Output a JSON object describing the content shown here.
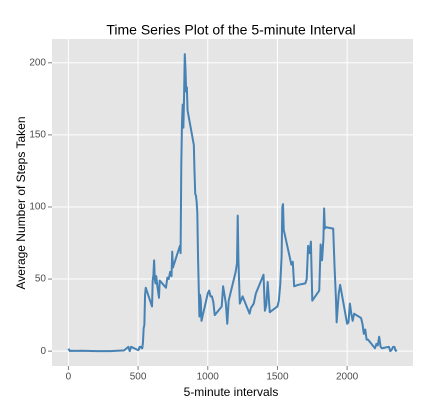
{
  "chart_data": {
    "type": "line",
    "title": "Time Series Plot of the 5-minute Interval",
    "x_label": "5-minute intervals",
    "y_label": "Average Number of Steps Taken",
    "x": [
      0,
      10,
      20,
      50,
      100,
      200,
      300,
      400,
      430,
      440,
      450,
      500,
      505,
      510,
      520,
      525,
      530,
      535,
      540,
      545,
      550,
      555,
      600,
      605,
      610,
      615,
      620,
      625,
      630,
      640,
      650,
      655,
      700,
      710,
      720,
      730,
      740,
      745,
      750,
      800,
      805,
      810,
      815,
      820,
      825,
      830,
      835,
      840,
      845,
      850,
      855,
      900,
      905,
      910,
      915,
      920,
      925,
      930,
      935,
      940,
      945,
      950,
      955,
      1000,
      1010,
      1020,
      1030,
      1040,
      1050,
      1100,
      1110,
      1130,
      1140,
      1150,
      1200,
      1210,
      1215,
      1220,
      1230,
      1250,
      1300,
      1310,
      1330,
      1345,
      1400,
      1410,
      1420,
      1430,
      1445,
      1500,
      1510,
      1520,
      1530,
      1535,
      1540,
      1545,
      1550,
      1600,
      1610,
      1620,
      1650,
      1700,
      1710,
      1720,
      1730,
      1740,
      1745,
      1750,
      1800,
      1810,
      1820,
      1830,
      1835,
      1840,
      1845,
      1900,
      1910,
      1920,
      1925,
      1930,
      1940,
      1950,
      2000,
      2010,
      2020,
      2030,
      2040,
      2050,
      2100,
      2110,
      2120,
      2130,
      2140,
      2150,
      2200,
      2210,
      2220,
      2230,
      2240,
      2250,
      2300,
      2310,
      2320,
      2330,
      2340,
      2345,
      2350,
      2355
    ],
    "series": [
      {
        "name": "steps",
        "color": "#4682b4",
        "values": [
          1.7,
          0.1,
          0.3,
          0.2,
          0.3,
          0,
          0,
          0.5,
          3,
          0,
          3,
          0.7,
          1,
          3,
          3,
          2,
          2,
          6,
          16,
          18,
          39,
          44,
          31,
          49,
          53,
          63,
          50,
          47,
          52,
          44,
          37,
          49,
          44,
          51,
          50,
          55,
          52,
          69,
          58,
          73,
          68,
          129,
          158,
          171,
          155,
          177,
          206,
          196,
          180,
          183,
          167,
          143,
          124,
          109,
          108,
          104,
          96,
          66,
          45,
          24,
          39,
          35,
          21,
          40,
          42,
          38,
          38,
          34,
          25,
          31,
          45,
          33,
          19,
          35,
          55,
          61,
          94,
          63,
          33,
          38,
          26,
          30,
          33,
          40,
          53,
          28,
          32,
          48,
          27,
          31,
          35,
          46,
          66,
          100,
          102,
          84,
          82,
          60,
          62,
          45,
          46,
          47,
          50,
          73,
          68,
          76,
          56,
          35,
          42,
          74,
          63,
          78,
          99,
          85,
          86,
          85,
          58,
          36,
          20,
          27,
          40,
          46,
          19,
          20,
          33,
          26,
          21,
          26,
          23,
          19,
          12,
          15,
          8,
          8,
          2,
          5,
          4,
          10,
          3,
          2,
          3,
          0,
          1,
          3,
          3,
          1,
          0.2,
          1.1
        ]
      }
    ],
    "xlim": [
      -117.75,
      2472.75
    ],
    "xticks": [
      0,
      500,
      1000,
      1500,
      2000
    ],
    "ylim": [
      -10.3,
      216.5
    ],
    "yticks": [
      0,
      50,
      100,
      150,
      200
    ],
    "grid": true
  }
}
